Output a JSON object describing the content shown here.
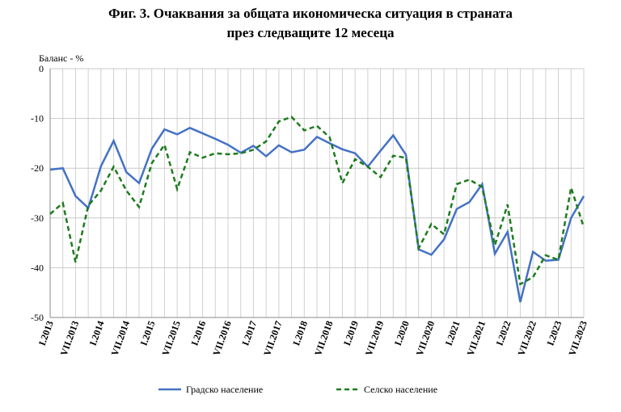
{
  "chart_data": {
    "type": "line",
    "title": [
      "Фиг. 3. Очаквания за общата икономическа ситуация в страната",
      "през следващите 12 месеца"
    ],
    "y_label": "Баланс - %",
    "categories": [
      "I.2013",
      null,
      "VII.2013",
      null,
      "I.2014",
      null,
      "VII.2014",
      null,
      "I.2015",
      null,
      "VII.2015",
      null,
      "I.2016",
      null,
      "VII.2016",
      null,
      "I.2017",
      null,
      "VII.2017",
      null,
      "I.2018",
      null,
      "VII.2018",
      null,
      "I.2019",
      null,
      "VII.2019",
      null,
      "I.2020",
      null,
      "VII.2020",
      null,
      "I.2021",
      null,
      "VII.2021",
      null,
      "I.2022",
      null,
      "VII.2022",
      null,
      "I.2023",
      null,
      "VII.2023"
    ],
    "series": [
      {
        "name": "Градско население",
        "color": "#4472c4",
        "dash": false,
        "values": [
          -20.3,
          -20,
          -25.6,
          -28,
          -19.6,
          -14.5,
          -20.8,
          -23,
          -16.1,
          -12.2,
          -13.2,
          -11.9,
          -13,
          -14.1,
          -15.3,
          -16.9,
          -15.5,
          -17.6,
          -15.4,
          -16.8,
          -16.3,
          -13.7,
          -15,
          -16.2,
          -17,
          -19.7,
          -16.5,
          -13.4,
          -17.3,
          -36.3,
          -37.4,
          -34.3,
          -28.2,
          -26.8,
          -23.2,
          -37.2,
          -32.8,
          -46.9,
          -36.8,
          -38.6,
          -38.4,
          -30,
          -25.6
        ]
      },
      {
        "name": "Селско население",
        "color": "#1e7b1e",
        "dash": true,
        "values": [
          -29.2,
          -27,
          -38.9,
          -27.5,
          -24.5,
          -19.7,
          -24.5,
          -27.8,
          -19,
          -15.3,
          -24.2,
          -16.8,
          -17.9,
          -17,
          -17.2,
          -17,
          -16.3,
          -14.6,
          -10.6,
          -9.7,
          -12.4,
          -11.5,
          -13.8,
          -23,
          -18.2,
          -19.7,
          -21.8,
          -17.5,
          -17.9,
          -36.1,
          -31.2,
          -33.3,
          -23.2,
          -22.3,
          -23.8,
          -35.5,
          -27.3,
          -43.3,
          -41.9,
          -37.5,
          -38.4,
          -23.9,
          -31.9
        ]
      }
    ],
    "ylim": [
      -50,
      0
    ],
    "yticks": [
      0,
      -10,
      -20,
      -30,
      -40,
      -50
    ],
    "grid": true,
    "legend": "bottom"
  }
}
